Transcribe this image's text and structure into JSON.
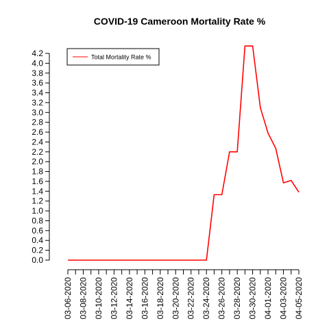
{
  "chart_data": {
    "type": "line",
    "title": "COVID-19 Cameroon Mortality Rate %",
    "xlabel": "",
    "ylabel": "",
    "ylim": [
      0,
      4.3
    ],
    "grid": false,
    "legend_position": "top-left",
    "x_tick_labels": [
      "03-06-2020",
      "03-08-2020",
      "03-10-2020",
      "03-12-2020",
      "03-14-2020",
      "03-16-2020",
      "03-18-2020",
      "03-20-2020",
      "03-22-2020",
      "03-24-2020",
      "03-26-2020",
      "03-28-2020",
      "03-30-2020",
      "04-01-2020",
      "04-03-2020",
      "04-05-2020"
    ],
    "y_tick_labels": [
      "0.0",
      "0.2",
      "0.4",
      "0.6",
      "0.8",
      "1.0",
      "1.2",
      "1.4",
      "1.6",
      "1.8",
      "2.0",
      "2.2",
      "2.4",
      "2.6",
      "2.8",
      "3.0",
      "3.2",
      "3.4",
      "3.6",
      "3.8",
      "4.0",
      "4.2"
    ],
    "x": [
      "03-06-2020",
      "03-07-2020",
      "03-08-2020",
      "03-09-2020",
      "03-10-2020",
      "03-11-2020",
      "03-12-2020",
      "03-13-2020",
      "03-14-2020",
      "03-15-2020",
      "03-16-2020",
      "03-17-2020",
      "03-18-2020",
      "03-19-2020",
      "03-20-2020",
      "03-21-2020",
      "03-22-2020",
      "03-23-2020",
      "03-24-2020",
      "03-25-2020",
      "03-26-2020",
      "03-27-2020",
      "03-28-2020",
      "03-29-2020",
      "03-30-2020",
      "03-31-2020",
      "04-01-2020",
      "04-02-2020",
      "04-03-2020",
      "04-04-2020",
      "04-05-2020"
    ],
    "series": [
      {
        "name": "Total Mortality Rate %",
        "color": "#ff0000",
        "values": [
          0,
          0,
          0,
          0,
          0,
          0,
          0,
          0,
          0,
          0,
          0,
          0,
          0,
          0,
          0,
          0,
          0,
          0,
          0,
          1.33,
          1.33,
          2.2,
          2.2,
          4.35,
          4.35,
          3.1,
          2.58,
          2.27,
          1.57,
          1.62,
          1.38
        ]
      }
    ]
  }
}
